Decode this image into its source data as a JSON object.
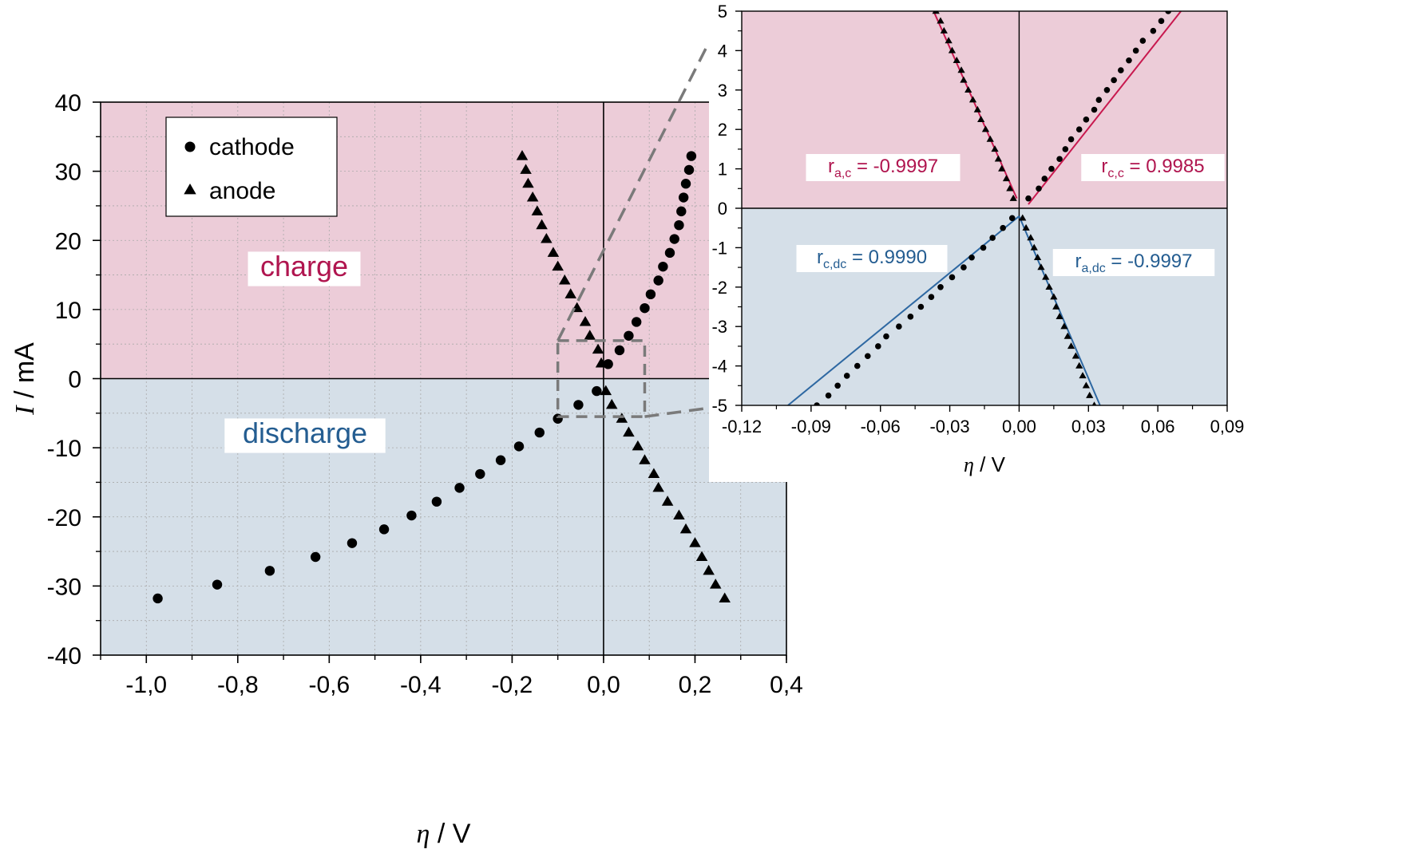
{
  "colors": {
    "charge_bg": "#ecccd8",
    "discharge_bg": "#d5dfe8",
    "charge_text": "#b0154f",
    "discharge_text": "#245d91",
    "charge_line": "#c8194f",
    "discharge_line": "#2e68a2",
    "marker": "#000000",
    "zoom_box": "#7a7a7a"
  },
  "chart_data": [
    {
      "type": "scatter",
      "xlabel_symbol": "η",
      "xlabel_unit": " / V",
      "ylabel_symbol": "I",
      "ylabel_unit": " / mA",
      "xlim": [
        -1.1,
        0.4
      ],
      "ylim": [
        -40,
        40
      ],
      "xticks": [
        -1.0,
        -0.8,
        -0.6,
        -0.4,
        -0.2,
        0.0,
        0.2,
        0.4
      ],
      "xtick_labels": [
        "-1,0",
        "-0,8",
        "-0,6",
        "-0,4",
        "-0,2",
        "0,0",
        "0,2",
        "0,4"
      ],
      "yticks": [
        -40,
        -30,
        -20,
        -10,
        0,
        10,
        20,
        30,
        40
      ],
      "ytick_labels": [
        "-40",
        "-30",
        "-20",
        "-10",
        "0",
        "10",
        "20",
        "30",
        "40"
      ],
      "grid": true,
      "legend": {
        "placement": "top-left",
        "entries": [
          "cathode",
          "anode"
        ]
      },
      "regions": [
        {
          "label": "charge",
          "range": [
            0,
            40
          ]
        },
        {
          "label": "discharge",
          "range": [
            -40,
            0
          ]
        }
      ],
      "zoom_box": {
        "x": [
          -0.1,
          0.09
        ],
        "y": [
          -5.5,
          5.5
        ]
      },
      "series": [
        {
          "name": "cathode",
          "marker": "circle",
          "points": [
            [
              0.01,
              2.1
            ],
            [
              0.035,
              4.1
            ],
            [
              0.055,
              6.2
            ],
            [
              0.072,
              8.2
            ],
            [
              0.09,
              10.2
            ],
            [
              0.103,
              12.2
            ],
            [
              0.12,
              14.2
            ],
            [
              0.13,
              16.2
            ],
            [
              0.145,
              18.2
            ],
            [
              0.155,
              20.2
            ],
            [
              0.165,
              22.2
            ],
            [
              0.17,
              24.2
            ],
            [
              0.175,
              26.2
            ],
            [
              0.18,
              28.2
            ],
            [
              0.187,
              30.2
            ],
            [
              0.192,
              32.2
            ],
            [
              -0.015,
              -1.8
            ],
            [
              -0.055,
              -3.8
            ],
            [
              -0.1,
              -5.8
            ],
            [
              -0.14,
              -7.8
            ],
            [
              -0.185,
              -9.8
            ],
            [
              -0.225,
              -11.8
            ],
            [
              -0.27,
              -13.8
            ],
            [
              -0.315,
              -15.8
            ],
            [
              -0.365,
              -17.8
            ],
            [
              -0.42,
              -19.8
            ],
            [
              -0.48,
              -21.8
            ],
            [
              -0.55,
              -23.8
            ],
            [
              -0.63,
              -25.8
            ],
            [
              -0.73,
              -27.8
            ],
            [
              -0.845,
              -29.8
            ],
            [
              -0.975,
              -31.8
            ]
          ]
        },
        {
          "name": "anode",
          "marker": "triangle",
          "points": [
            [
              -0.005,
              2.2
            ],
            [
              -0.012,
              4.2
            ],
            [
              -0.03,
              6.2
            ],
            [
              -0.04,
              8.2
            ],
            [
              -0.058,
              10.2
            ],
            [
              -0.072,
              12.2
            ],
            [
              -0.085,
              14.2
            ],
            [
              -0.1,
              16.2
            ],
            [
              -0.11,
              18.2
            ],
            [
              -0.125,
              20.2
            ],
            [
              -0.135,
              22.2
            ],
            [
              -0.145,
              24.2
            ],
            [
              -0.155,
              26.2
            ],
            [
              -0.165,
              28.2
            ],
            [
              -0.17,
              30.2
            ],
            [
              -0.178,
              32.2
            ],
            [
              0.005,
              -1.8
            ],
            [
              0.018,
              -3.8
            ],
            [
              0.04,
              -5.8
            ],
            [
              0.055,
              -7.8
            ],
            [
              0.075,
              -9.8
            ],
            [
              0.09,
              -11.8
            ],
            [
              0.11,
              -13.8
            ],
            [
              0.12,
              -15.8
            ],
            [
              0.14,
              -17.8
            ],
            [
              0.165,
              -19.8
            ],
            [
              0.18,
              -21.8
            ],
            [
              0.2,
              -23.8
            ],
            [
              0.215,
              -25.8
            ],
            [
              0.23,
              -27.8
            ],
            [
              0.245,
              -29.8
            ],
            [
              0.265,
              -31.8
            ]
          ]
        }
      ]
    },
    {
      "type": "scatter",
      "xlabel_symbol": "η",
      "xlabel_unit": " / V",
      "xlim": [
        -0.12,
        0.09
      ],
      "ylim": [
        -5,
        5
      ],
      "xticks": [
        -0.12,
        -0.09,
        -0.06,
        -0.03,
        0.0,
        0.03,
        0.06,
        0.09
      ],
      "xtick_labels": [
        "-0,12",
        "-0,09",
        "-0,06",
        "-0,03",
        "0,00",
        "0,03",
        "0,06",
        "0,09"
      ],
      "yticks": [
        -5,
        -4,
        -3,
        -2,
        -1,
        0,
        1,
        2,
        3,
        4,
        5
      ],
      "ytick_labels": [
        "-5",
        "-4",
        "-3",
        "-2",
        "-1",
        "0",
        "1",
        "2",
        "3",
        "4",
        "5"
      ],
      "grid": false,
      "series": [
        {
          "name": "cathode charge",
          "marker": "circle",
          "points": [
            [
              0.004,
              0.25
            ],
            [
              0.0085,
              0.5
            ],
            [
              0.011,
              0.75
            ],
            [
              0.014,
              1.0
            ],
            [
              0.0175,
              1.25
            ],
            [
              0.02,
              1.5
            ],
            [
              0.0225,
              1.75
            ],
            [
              0.026,
              2.0
            ],
            [
              0.029,
              2.25
            ],
            [
              0.0325,
              2.5
            ],
            [
              0.0345,
              2.75
            ],
            [
              0.038,
              3.0
            ],
            [
              0.041,
              3.25
            ],
            [
              0.044,
              3.5
            ],
            [
              0.0475,
              3.75
            ],
            [
              0.0505,
              4.0
            ],
            [
              0.0535,
              4.25
            ],
            [
              0.058,
              4.5
            ],
            [
              0.0615,
              4.75
            ],
            [
              0.0645,
              5.0
            ]
          ]
        },
        {
          "name": "anode charge",
          "marker": "triangle",
          "points": [
            [
              -0.0025,
              0.25
            ],
            [
              -0.004,
              0.5
            ],
            [
              -0.0055,
              0.75
            ],
            [
              -0.0075,
              1.0
            ],
            [
              -0.009,
              1.25
            ],
            [
              -0.0105,
              1.5
            ],
            [
              -0.0125,
              1.75
            ],
            [
              -0.0145,
              2.0
            ],
            [
              -0.0165,
              2.25
            ],
            [
              -0.018,
              2.5
            ],
            [
              -0.02,
              2.75
            ],
            [
              -0.022,
              3.0
            ],
            [
              -0.024,
              3.25
            ],
            [
              -0.025,
              3.5
            ],
            [
              -0.027,
              3.75
            ],
            [
              -0.029,
              4.0
            ],
            [
              -0.0305,
              4.25
            ],
            [
              -0.0325,
              4.5
            ],
            [
              -0.034,
              4.75
            ],
            [
              -0.036,
              5.0
            ]
          ]
        },
        {
          "name": "cathode discharge",
          "marker": "circle",
          "points": [
            [
              -0.003,
              -0.25
            ],
            [
              -0.007,
              -0.5
            ],
            [
              -0.0115,
              -0.75
            ],
            [
              -0.0155,
              -1.0
            ],
            [
              -0.0205,
              -1.25
            ],
            [
              -0.024,
              -1.5
            ],
            [
              -0.029,
              -1.75
            ],
            [
              -0.034,
              -2.0
            ],
            [
              -0.038,
              -2.25
            ],
            [
              -0.0425,
              -2.5
            ],
            [
              -0.047,
              -2.75
            ],
            [
              -0.052,
              -3.0
            ],
            [
              -0.0575,
              -3.25
            ],
            [
              -0.061,
              -3.5
            ],
            [
              -0.0655,
              -3.75
            ],
            [
              -0.07,
              -4.0
            ],
            [
              -0.0745,
              -4.25
            ],
            [
              -0.0785,
              -4.5
            ],
            [
              -0.0825,
              -4.75
            ],
            [
              -0.0875,
              -5.0
            ]
          ]
        },
        {
          "name": "anode discharge",
          "marker": "triangle",
          "points": [
            [
              0.0015,
              -0.25
            ],
            [
              0.003,
              -0.5
            ],
            [
              0.005,
              -0.75
            ],
            [
              0.0065,
              -1.0
            ],
            [
              0.008,
              -1.25
            ],
            [
              0.0095,
              -1.5
            ],
            [
              0.0115,
              -1.75
            ],
            [
              0.013,
              -2.0
            ],
            [
              0.015,
              -2.25
            ],
            [
              0.016,
              -2.5
            ],
            [
              0.0175,
              -2.75
            ],
            [
              0.0195,
              -3.0
            ],
            [
              0.021,
              -3.25
            ],
            [
              0.0225,
              -3.5
            ],
            [
              0.0245,
              -3.75
            ],
            [
              0.026,
              -4.0
            ],
            [
              0.0275,
              -4.25
            ],
            [
              0.029,
              -4.5
            ],
            [
              0.0305,
              -4.75
            ],
            [
              0.0325,
              -5.0
            ]
          ]
        }
      ],
      "fits": [
        {
          "name": "r_a,c",
          "from": [
            -0.001,
            0.25
          ],
          "to": [
            -0.037,
            5.0
          ],
          "color": "charge_line"
        },
        {
          "name": "r_c,c",
          "from": [
            0.004,
            0.1
          ],
          "to": [
            0.07,
            5.0
          ],
          "color": "charge_line"
        },
        {
          "name": "r_c,dc",
          "from": [
            0.0,
            -0.2
          ],
          "to": [
            -0.1,
            -5.0
          ],
          "color": "discharge_line"
        },
        {
          "name": "r_a,dc",
          "from": [
            0.0,
            -0.2
          ],
          "to": [
            0.035,
            -5.0
          ],
          "color": "discharge_line"
        }
      ],
      "annotations": [
        {
          "base": "r",
          "sub": "a,c",
          "value": " = -0.9997",
          "region": "charge"
        },
        {
          "base": "r",
          "sub": "c,c",
          "value": " = 0.9985",
          "region": "charge"
        },
        {
          "base": "r",
          "sub": "c,dc",
          "value": " = 0.9990",
          "region": "discharge"
        },
        {
          "base": "r",
          "sub": "a,dc",
          "value": " = -0.9997",
          "region": "discharge"
        }
      ]
    }
  ]
}
